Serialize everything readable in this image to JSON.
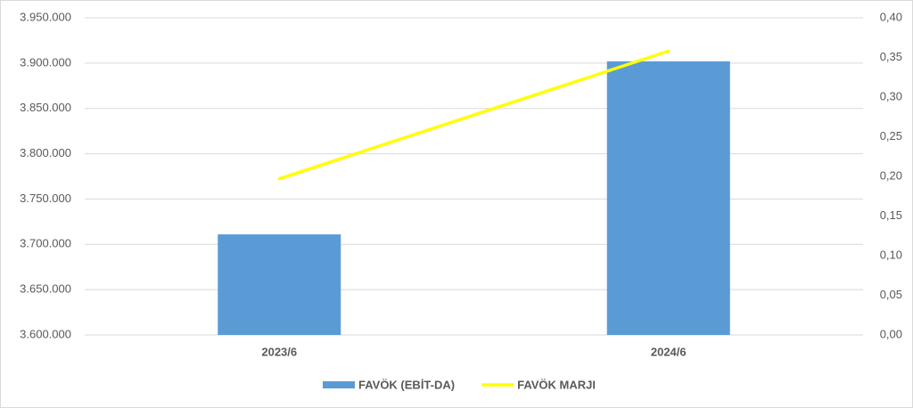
{
  "chart_data": {
    "type": "bar",
    "categories": [
      "2023/6",
      "2024/6"
    ],
    "series": [
      {
        "name": "FAVÖK (EBİT-DA)",
        "color": "#5b9bd5",
        "values": [
          3711000,
          3902000
        ]
      },
      {
        "name": "FAVÖK MARJI",
        "color": "#ffff00",
        "values": [
          0.197,
          0.358
        ],
        "type": "line",
        "axis": "y2"
      }
    ],
    "ylim": [
      3600000,
      3950000
    ],
    "yticks": [
      {
        "value": 3600000,
        "label": "3.600.000"
      },
      {
        "value": 3650000,
        "label": "3.650.000"
      },
      {
        "value": 3700000,
        "label": "3.700.000"
      },
      {
        "value": 3750000,
        "label": "3.750.000"
      },
      {
        "value": 3800000,
        "label": "3.800.000"
      },
      {
        "value": 3850000,
        "label": "3.850.000"
      },
      {
        "value": 3900000,
        "label": "3.900.000"
      },
      {
        "value": 3950000,
        "label": "3.950.000"
      }
    ],
    "y2lim": [
      0,
      0.4
    ],
    "y2ticks": [
      {
        "value": 0,
        "label": "0,00"
      },
      {
        "value": 0.05,
        "label": "0,05"
      },
      {
        "value": 0.1,
        "label": "0,10"
      },
      {
        "value": 0.15,
        "label": "0,15"
      },
      {
        "value": 0.2,
        "label": "0,20"
      },
      {
        "value": 0.25,
        "label": "0,25"
      },
      {
        "value": 0.3,
        "label": "0,30"
      },
      {
        "value": 0.35,
        "label": "0,35"
      },
      {
        "value": 0.4,
        "label": "0,40"
      }
    ],
    "grid": true,
    "legend": "bottom"
  }
}
